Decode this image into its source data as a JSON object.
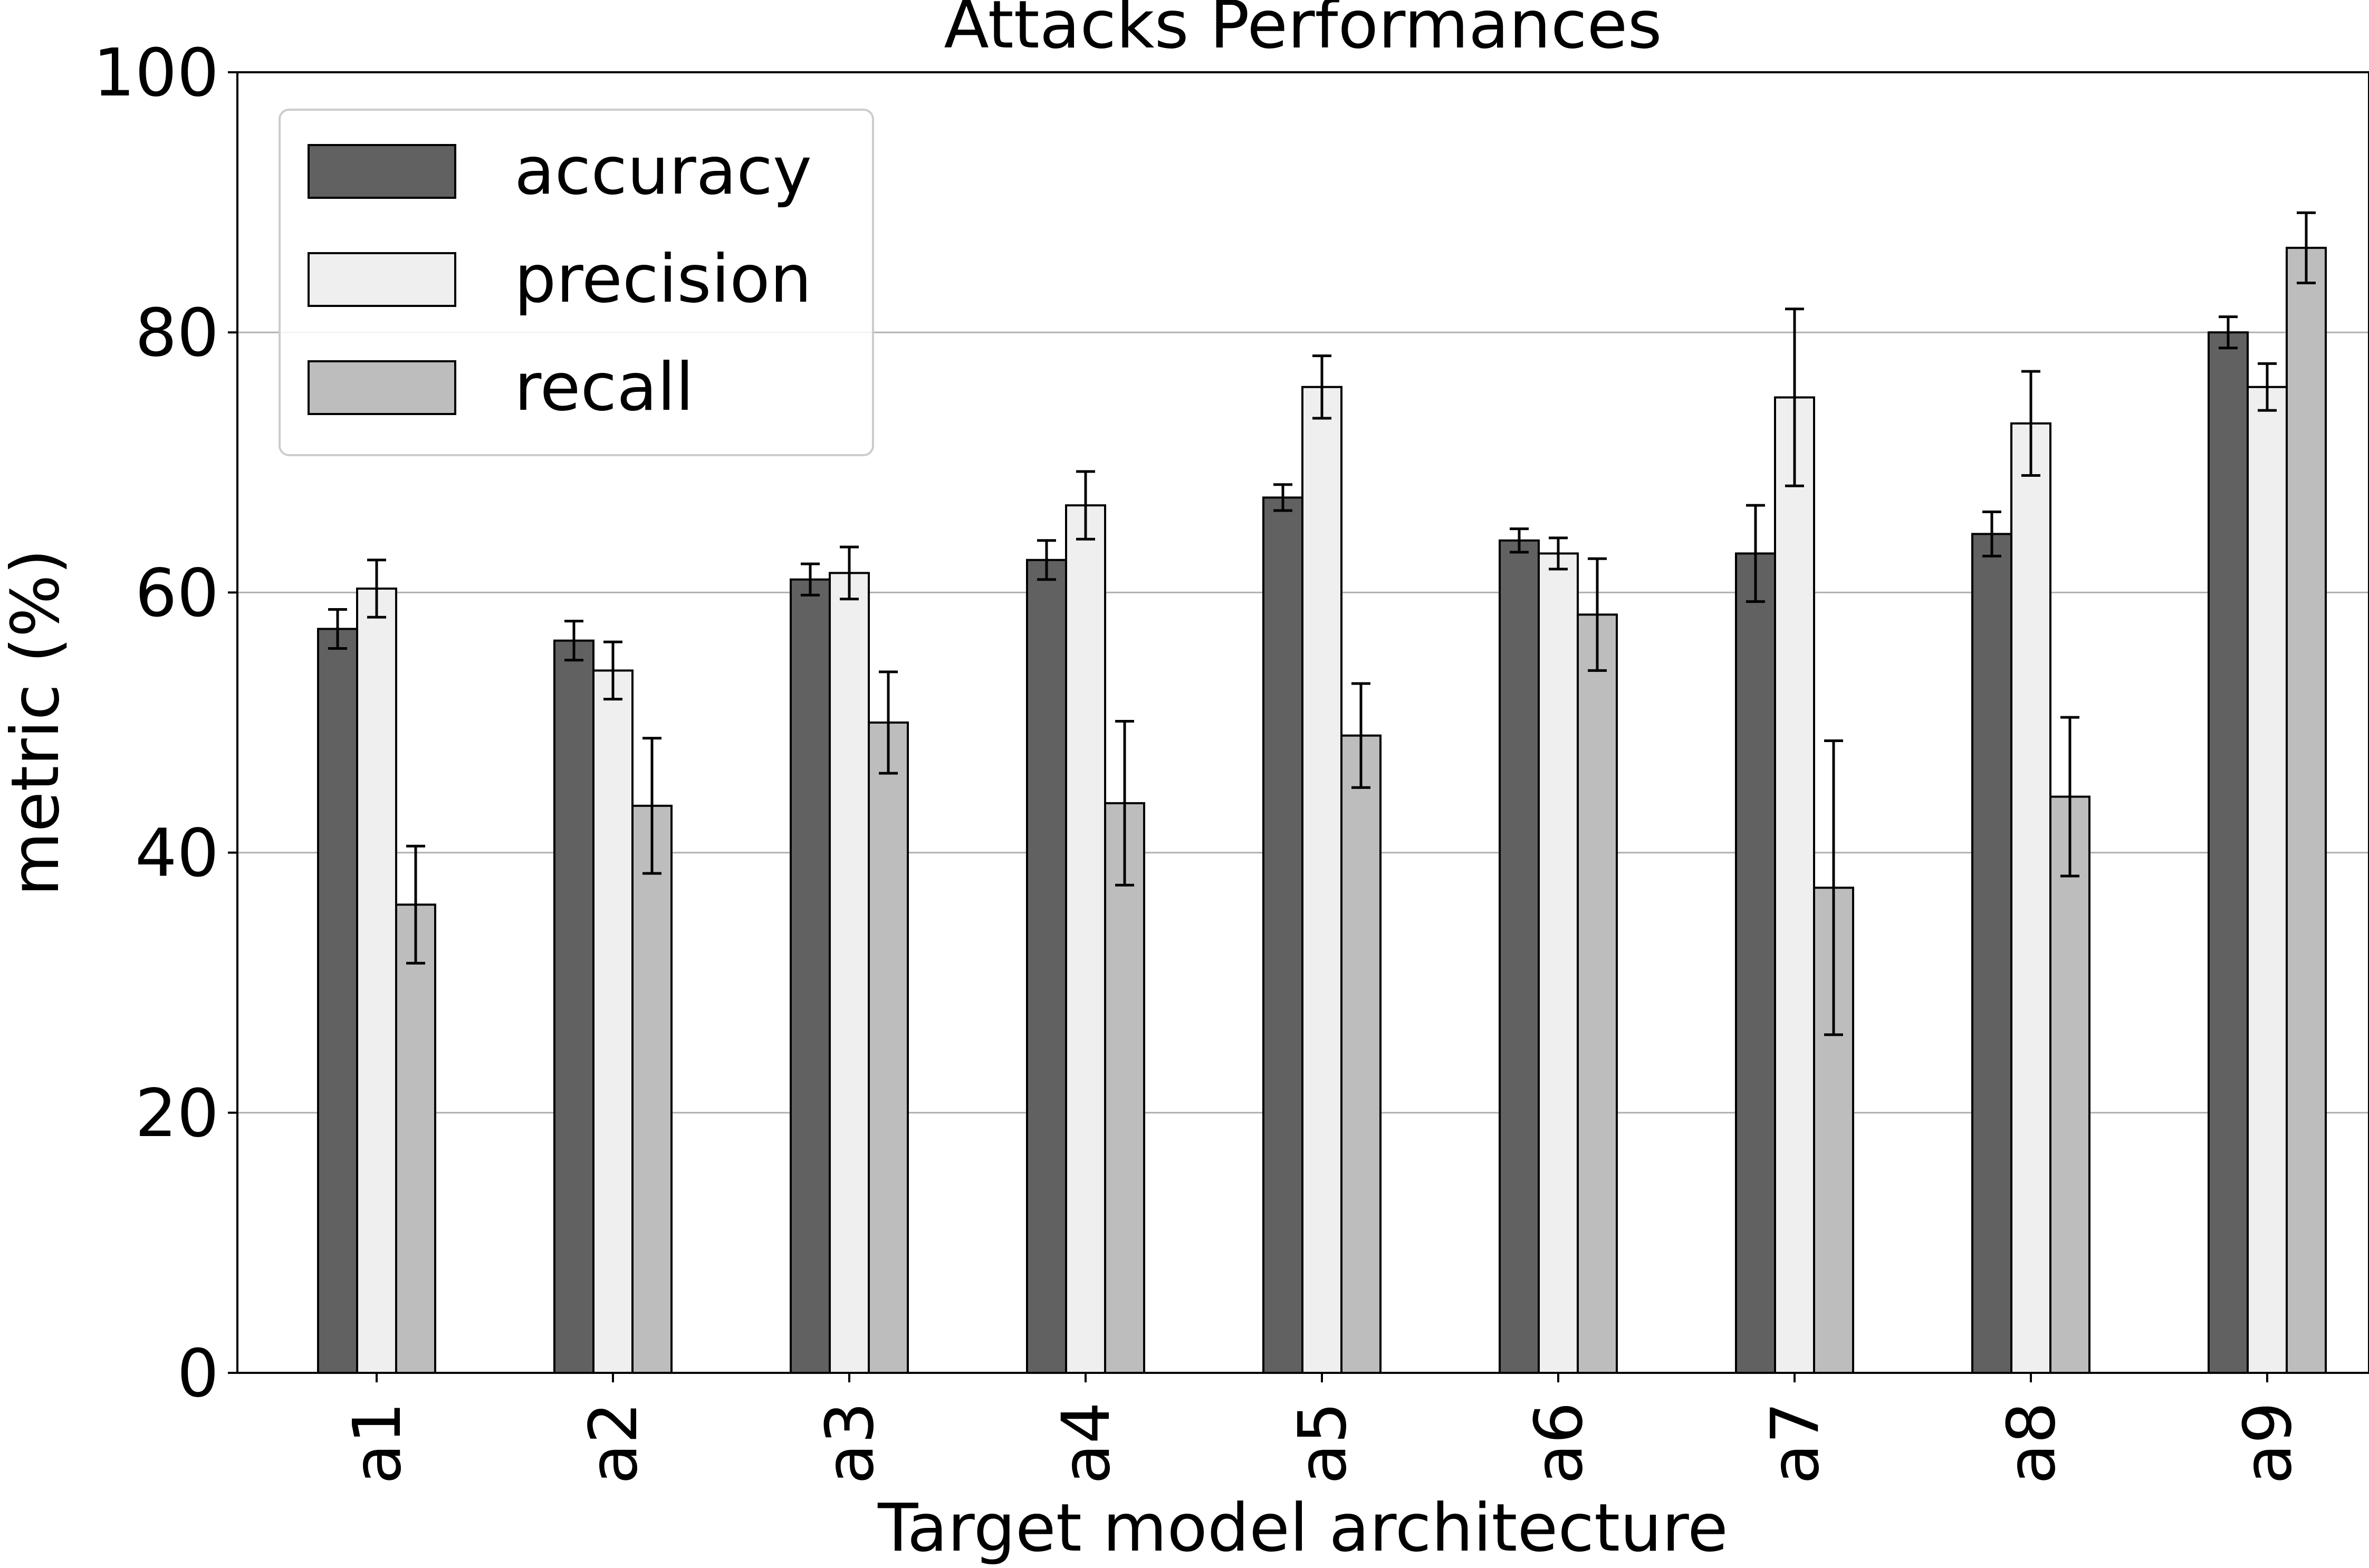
{
  "chart_data": {
    "type": "bar",
    "title": "Attacks Performances",
    "xlabel": "Target model architecture",
    "ylabel": "metric (%)",
    "ylim": [
      0,
      100
    ],
    "yticks": [
      0,
      20,
      40,
      60,
      80,
      100
    ],
    "ytick_labels": [
      "0",
      "20",
      "40",
      "60",
      "80",
      "100"
    ],
    "grid": "horizontal",
    "legend_position": "top-left",
    "categories": [
      "a1",
      "a2",
      "a3",
      "a4",
      "a5",
      "a6",
      "a7",
      "a8",
      "a9"
    ],
    "series": [
      {
        "name": "accuracy",
        "color": "#616161",
        "values": [
          57.2,
          56.3,
          61.0,
          62.5,
          67.3,
          64.0,
          63.0,
          64.5,
          80.0
        ],
        "errors": [
          1.5,
          1.5,
          1.2,
          1.5,
          1.0,
          0.9,
          3.7,
          1.7,
          1.2
        ]
      },
      {
        "name": "precision",
        "color": "#efefef",
        "values": [
          60.3,
          54.0,
          61.5,
          66.7,
          75.8,
          63.0,
          75.0,
          73.0,
          75.8
        ],
        "errors": [
          2.2,
          2.2,
          2.0,
          2.6,
          2.4,
          1.2,
          6.8,
          4.0,
          1.8
        ]
      },
      {
        "name": "recall",
        "color": "#bdbdbd",
        "values": [
          36.0,
          43.6,
          50.0,
          43.8,
          49.0,
          58.3,
          37.3,
          44.3,
          86.5
        ],
        "errors": [
          4.5,
          5.2,
          3.9,
          6.3,
          4.0,
          4.3,
          11.3,
          6.1,
          2.7
        ]
      }
    ]
  }
}
